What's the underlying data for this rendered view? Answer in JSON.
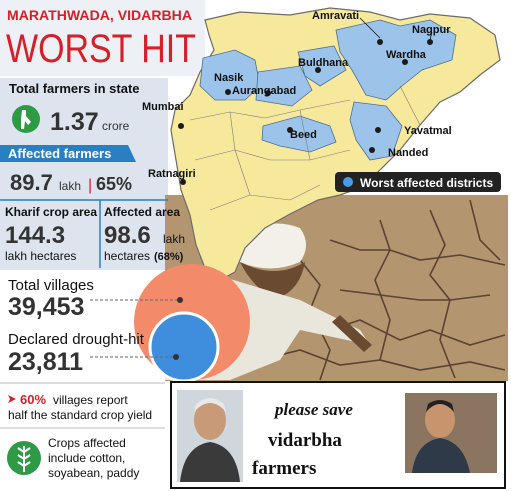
{
  "header": {
    "region": "MARATHWADA, VIDARBHA",
    "title": "WORST HIT"
  },
  "stats": {
    "total_farmers": {
      "label": "Total farmers in state",
      "value": "1.37",
      "unit": "crore"
    },
    "affected_farmers": {
      "label": "Affected farmers",
      "value": "89.7",
      "unit": "lakh",
      "separator": "|",
      "share": "65%"
    },
    "kharif_area": {
      "label": "Kharif crop area",
      "value": "144.3",
      "unit": "lakh hectares"
    },
    "affected_area": {
      "label": "Affected area",
      "value": "98.6",
      "unit": "lakh",
      "unit2": "hectares",
      "share": "(68%)"
    },
    "total_villages": {
      "label": "Total villages",
      "value": "39,453"
    },
    "drought_villages": {
      "label": "Declared drought-hit",
      "value": "23,811"
    },
    "yield_note": {
      "share": "60%",
      "line1": "villages report",
      "line2": "half the standard crop yield"
    },
    "crops_note": {
      "lines": [
        "Crops affected",
        "include cotton,",
        "soyabean, paddy"
      ]
    }
  },
  "map": {
    "labels": [
      "Amravati",
      "Nagpur",
      "Wardha",
      "Nasik",
      "Buldhana",
      "Aurangabad",
      "Mumbai",
      "Beed",
      "Yavatmal",
      "Nanded",
      "Ratnagiri"
    ],
    "legend": "Worst affected districts"
  },
  "appeal": {
    "lines": [
      "please save",
      "vidarbha",
      "farmers"
    ]
  }
}
